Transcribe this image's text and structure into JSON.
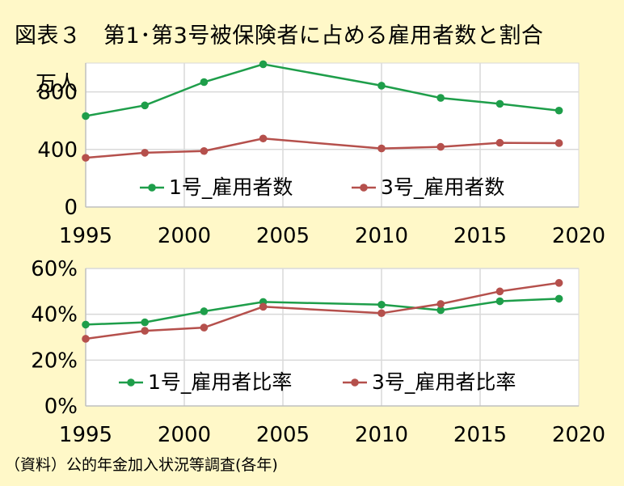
{
  "title": "図表３　第1･第3号被保険者に占める雇用者数と割合",
  "source": "（資料）公的年金加入状況等調査(各年)",
  "colors": {
    "background": "#FFF8C8",
    "series1": "#1E9E4A",
    "series2": "#B5504C",
    "grid": "#D9D9D9"
  },
  "chart_data": [
    {
      "type": "line",
      "ylabel": "万人",
      "ylim": [
        0,
        1000
      ],
      "yticks": [
        0,
        400,
        800
      ],
      "ytick_labels": [
        "0",
        "400",
        "800"
      ],
      "xlim": [
        1995,
        2020
      ],
      "xticks": [
        1995,
        2000,
        2005,
        2010,
        2015,
        2020
      ],
      "xtick_labels": [
        "1995",
        "2000",
        "2005",
        "2010",
        "2015",
        "2020"
      ],
      "grid": true,
      "legend": "bottom-center",
      "series": [
        {
          "name": "1号_雇用者数",
          "x": [
            1995,
            1998,
            2001,
            2004,
            2010,
            2013,
            2016,
            2019
          ],
          "values": [
            632,
            706,
            868,
            992,
            843,
            758,
            717,
            670
          ]
        },
        {
          "name": "3号_雇用者数",
          "x": [
            1995,
            1998,
            2001,
            2004,
            2010,
            2013,
            2016,
            2019
          ],
          "values": [
            342,
            377,
            389,
            476,
            407,
            418,
            446,
            444
          ]
        }
      ]
    },
    {
      "type": "line",
      "ylim": [
        0,
        0.6
      ],
      "yticks": [
        0,
        0.2,
        0.4,
        0.6
      ],
      "ytick_labels": [
        "0%",
        "20%",
        "40%",
        "60%"
      ],
      "xlim": [
        1995,
        2020
      ],
      "xticks": [
        1995,
        2000,
        2005,
        2010,
        2015,
        2020
      ],
      "xtick_labels": [
        "1995",
        "2000",
        "2005",
        "2010",
        "2015",
        "2020"
      ],
      "grid": true,
      "legend": "bottom-center",
      "series": [
        {
          "name": "1号_雇用者比率",
          "x": [
            1995,
            1998,
            2001,
            2004,
            2010,
            2013,
            2016,
            2019
          ],
          "values": [
            0.355,
            0.365,
            0.413,
            0.454,
            0.442,
            0.418,
            0.457,
            0.468
          ]
        },
        {
          "name": "3号_雇用者比率",
          "x": [
            1995,
            1998,
            2001,
            2004,
            2010,
            2013,
            2016,
            2019
          ],
          "values": [
            0.293,
            0.328,
            0.342,
            0.433,
            0.405,
            0.445,
            0.5,
            0.537
          ]
        }
      ]
    }
  ]
}
